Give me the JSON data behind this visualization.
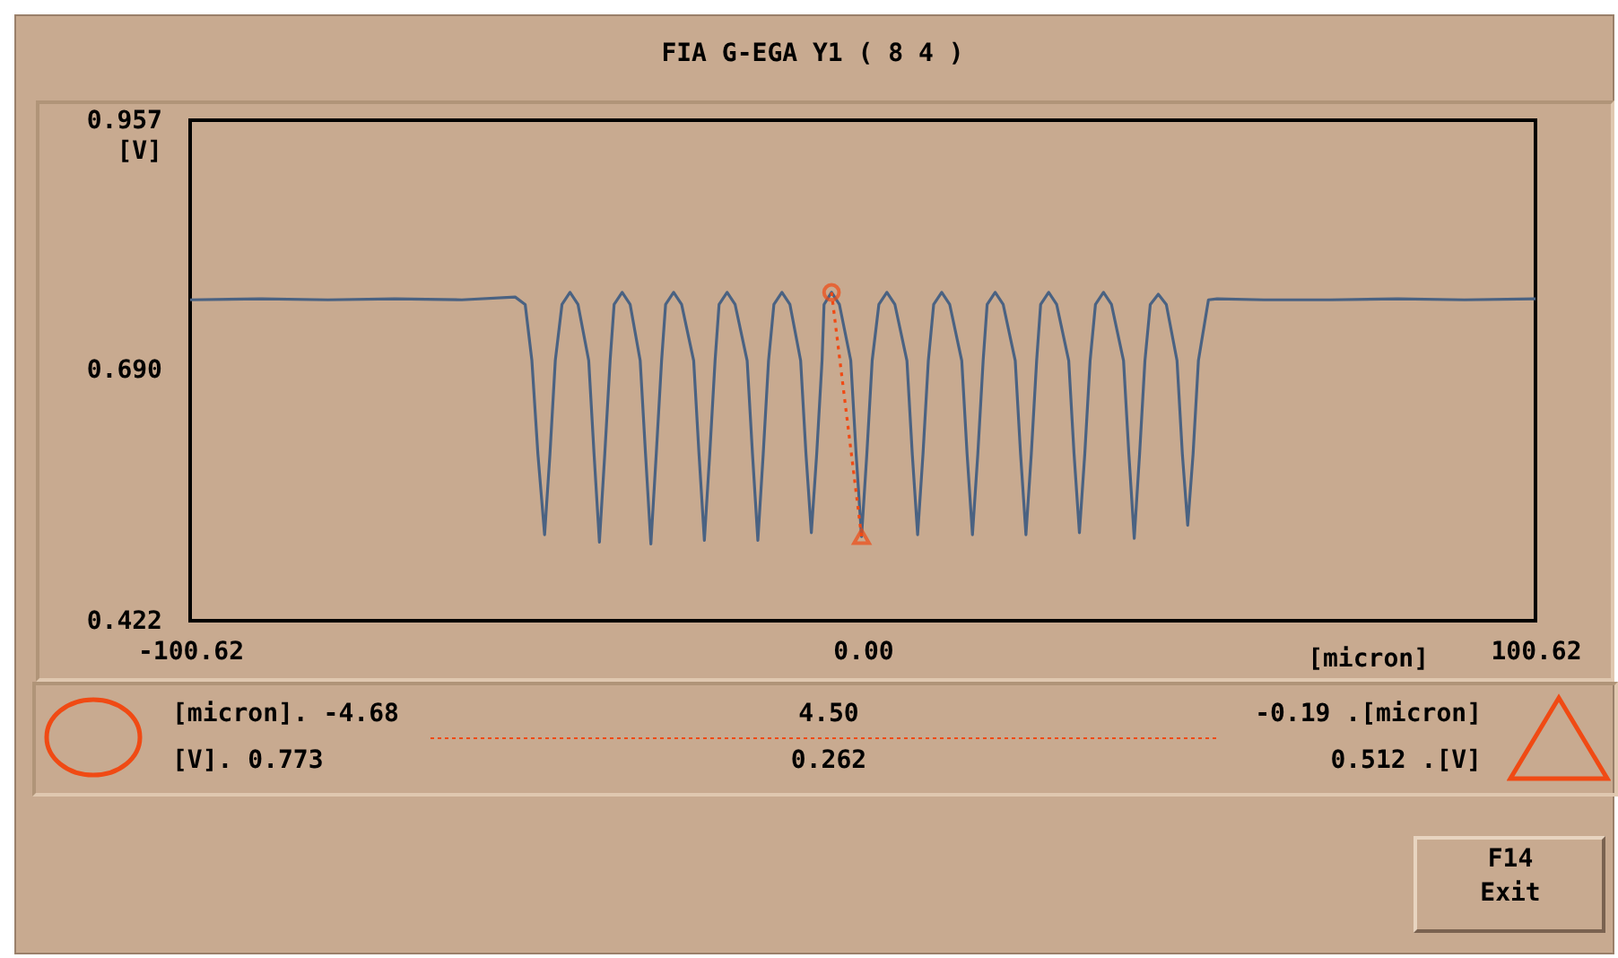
{
  "chart_data": {
    "type": "line",
    "title": "FIA G-EGA Y1 ( 8 4 )",
    "xlabel": "[micron]",
    "ylabel": "[V]",
    "xlim": [
      -100.62,
      100.62
    ],
    "ylim": [
      0.422,
      0.957
    ],
    "xticks": [
      -100.62,
      {
        "value": 0,
        "label": "0.00"
      },
      100.62
    ],
    "yticks": [
      0.957,
      {
        "value": 0.69,
        "label": "0.690"
      },
      0.422
    ],
    "series": [
      {
        "color": "#4a6282",
        "x": [
          -100.62,
          -90,
          -80,
          -70,
          -60,
          -52,
          -50.5,
          -49.5,
          -48.6,
          -47.6,
          -46.8,
          -46.0,
          -45.0,
          -43.8,
          -42.6,
          -41.0,
          -40.2,
          -39.4,
          -38.6,
          -37.8,
          -37.2,
          -36.0,
          -34.8,
          -33.3,
          -32.5,
          -31.7,
          -30.9,
          -30.1,
          -29.5,
          -28.3,
          -27.1,
          -25.3,
          -24.5,
          -23.7,
          -22.9,
          -22.1,
          -21.5,
          -20.3,
          -19.1,
          -17.3,
          -16.5,
          -15.7,
          -14.9,
          -14.1,
          -13.3,
          -12.1,
          -10.9,
          -9.3,
          -8.5,
          -7.7,
          -6.9,
          -6.1,
          -5.8,
          -4.68,
          -3.5,
          -1.8,
          -1.0,
          -0.19,
          0.6,
          1.4,
          2.4,
          3.6,
          4.8,
          6.6,
          7.4,
          8.2,
          9.0,
          9.8,
          10.6,
          11.8,
          13.0,
          14.8,
          15.6,
          16.4,
          17.2,
          18.0,
          18.6,
          19.8,
          21.0,
          22.8,
          23.6,
          24.4,
          25.2,
          26.0,
          26.6,
          27.8,
          29.0,
          30.8,
          31.6,
          32.4,
          33.2,
          34.0,
          34.8,
          36.0,
          37.2,
          39.0,
          39.8,
          40.6,
          41.4,
          42.2,
          43.0,
          44.2,
          45.4,
          47.0,
          47.8,
          48.6,
          49.4,
          50.2,
          51.7,
          53,
          60,
          70,
          80,
          90,
          100.62
        ],
        "values": [
          0.765,
          0.766,
          0.765,
          0.766,
          0.765,
          0.768,
          0.76,
          0.7,
          0.6,
          0.514,
          0.6,
          0.7,
          0.76,
          0.773,
          0.76,
          0.7,
          0.6,
          0.506,
          0.6,
          0.7,
          0.76,
          0.773,
          0.76,
          0.7,
          0.6,
          0.504,
          0.6,
          0.7,
          0.76,
          0.773,
          0.76,
          0.7,
          0.6,
          0.508,
          0.6,
          0.7,
          0.76,
          0.773,
          0.76,
          0.7,
          0.6,
          0.508,
          0.6,
          0.7,
          0.76,
          0.773,
          0.76,
          0.7,
          0.6,
          0.516,
          0.6,
          0.7,
          0.76,
          0.773,
          0.76,
          0.7,
          0.6,
          0.512,
          0.6,
          0.7,
          0.76,
          0.773,
          0.76,
          0.7,
          0.6,
          0.514,
          0.6,
          0.7,
          0.76,
          0.773,
          0.76,
          0.7,
          0.6,
          0.514,
          0.6,
          0.7,
          0.76,
          0.773,
          0.76,
          0.7,
          0.6,
          0.514,
          0.6,
          0.7,
          0.76,
          0.773,
          0.76,
          0.7,
          0.6,
          0.516,
          0.6,
          0.7,
          0.76,
          0.773,
          0.76,
          0.7,
          0.6,
          0.51,
          0.6,
          0.7,
          0.76,
          0.771,
          0.76,
          0.7,
          0.6,
          0.524,
          0.6,
          0.7,
          0.765,
          0.766,
          0.765,
          0.765,
          0.766,
          0.765,
          0.766
        ]
      },
      {
        "type": "line",
        "color": "#f04a14",
        "line_style": "dotted",
        "x": [
          -4.68,
          -0.19
        ],
        "values": [
          0.773,
          0.512
        ]
      },
      {
        "type": "scatter",
        "color": "#f04a14",
        "marker": "circle",
        "x": [
          -4.68
        ],
        "values": [
          0.773
        ]
      },
      {
        "type": "scatter",
        "color": "#f04a14",
        "marker": "triangle",
        "x": [
          -0.19
        ],
        "values": [
          0.512
        ]
      }
    ],
    "annotations": [
      "[micron]. -4.68",
      "4.50",
      "-0.19 .[micron]",
      "[V]. 0.773",
      "0.262",
      "0.512 .[V]",
      "F14",
      "Exit"
    ]
  }
}
